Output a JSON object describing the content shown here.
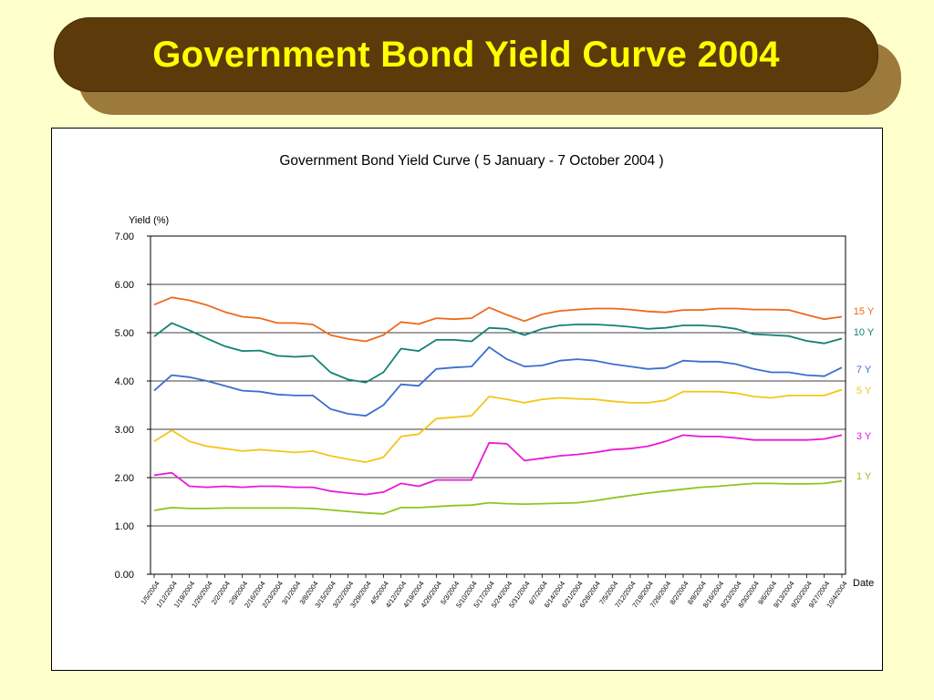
{
  "slide": {
    "title": "Government Bond Yield Curve 2004"
  },
  "chart_data": {
    "type": "line",
    "title": "Government Bond Yield Curve ( 5 January - 7 October 2004 )",
    "ylabel": "Yield (%)",
    "xlabel": "Date",
    "ylim": [
      0,
      7
    ],
    "yticks": [
      "0.00",
      "1.00",
      "2.00",
      "3.00",
      "4.00",
      "5.00",
      "6.00",
      "7.00"
    ],
    "grid": true,
    "legend": "right",
    "x": [
      "1/5/2004",
      "1/12/2004",
      "1/19/2004",
      "1/26/2004",
      "2/2/2004",
      "2/9/2004",
      "2/16/2004",
      "2/23/2004",
      "3/1/2004",
      "3/8/2004",
      "3/15/2004",
      "3/22/2004",
      "3/29/2004",
      "4/5/2004",
      "4/12/2004",
      "4/19/2004",
      "4/26/2004",
      "5/3/2004",
      "5/10/2004",
      "5/17/2004",
      "5/24/2004",
      "5/31/2004",
      "6/7/2004",
      "6/14/2004",
      "6/21/2004",
      "6/28/2004",
      "7/5/2004",
      "7/12/2004",
      "7/19/2004",
      "7/26/2004",
      "8/2/2004",
      "8/9/2004",
      "8/16/2004",
      "8/23/2004",
      "8/30/2004",
      "9/6/2004",
      "9/13/2004",
      "9/20/2004",
      "9/27/2004",
      "10/4/2004"
    ],
    "series": [
      {
        "name": "15 Y",
        "color": "#ee6a1c",
        "values": [
          5.58,
          5.73,
          5.67,
          5.57,
          5.43,
          5.33,
          5.3,
          5.2,
          5.2,
          5.17,
          4.95,
          4.87,
          4.82,
          4.95,
          5.22,
          5.18,
          5.3,
          5.28,
          5.3,
          5.52,
          5.37,
          5.24,
          5.38,
          5.45,
          5.48,
          5.5,
          5.5,
          5.48,
          5.44,
          5.42,
          5.47,
          5.47,
          5.5,
          5.5,
          5.48,
          5.48,
          5.47,
          5.37,
          5.28,
          5.33
        ]
      },
      {
        "name": "10 Y",
        "color": "#138072",
        "values": [
          4.92,
          5.2,
          5.05,
          4.88,
          4.72,
          4.62,
          4.63,
          4.52,
          4.5,
          4.52,
          4.18,
          4.03,
          3.97,
          4.18,
          4.67,
          4.62,
          4.85,
          4.85,
          4.82,
          5.1,
          5.08,
          4.95,
          5.08,
          5.15,
          5.17,
          5.17,
          5.15,
          5.12,
          5.08,
          5.1,
          5.15,
          5.15,
          5.13,
          5.08,
          4.97,
          4.95,
          4.93,
          4.83,
          4.78,
          4.88
        ]
      },
      {
        "name": "7 Y",
        "color": "#3a6fd0",
        "values": [
          3.8,
          4.12,
          4.08,
          4.0,
          3.9,
          3.8,
          3.78,
          3.72,
          3.7,
          3.7,
          3.42,
          3.32,
          3.28,
          3.5,
          3.93,
          3.9,
          4.25,
          4.28,
          4.3,
          4.7,
          4.45,
          4.3,
          4.32,
          4.42,
          4.45,
          4.42,
          4.35,
          4.3,
          4.25,
          4.27,
          4.42,
          4.4,
          4.4,
          4.35,
          4.25,
          4.18,
          4.18,
          4.12,
          4.1,
          4.28
        ]
      },
      {
        "name": "5 Y",
        "color": "#f5c518",
        "values": [
          2.75,
          2.98,
          2.75,
          2.65,
          2.6,
          2.55,
          2.58,
          2.55,
          2.52,
          2.55,
          2.45,
          2.38,
          2.32,
          2.42,
          2.85,
          2.9,
          3.22,
          3.25,
          3.28,
          3.68,
          3.62,
          3.55,
          3.62,
          3.65,
          3.63,
          3.62,
          3.58,
          3.55,
          3.55,
          3.6,
          3.78,
          3.78,
          3.78,
          3.75,
          3.68,
          3.65,
          3.7,
          3.7,
          3.7,
          3.82
        ]
      },
      {
        "name": "3 Y",
        "color": "#e81ad8",
        "values": [
          2.05,
          2.1,
          1.82,
          1.8,
          1.82,
          1.8,
          1.82,
          1.82,
          1.8,
          1.8,
          1.72,
          1.68,
          1.65,
          1.7,
          1.88,
          1.82,
          1.95,
          1.95,
          1.95,
          2.72,
          2.7,
          2.35,
          2.4,
          2.45,
          2.48,
          2.52,
          2.58,
          2.6,
          2.65,
          2.75,
          2.88,
          2.85,
          2.85,
          2.82,
          2.78,
          2.78,
          2.78,
          2.78,
          2.8,
          2.88
        ]
      },
      {
        "name": "1 Y",
        "color": "#92c31f",
        "values": [
          1.32,
          1.38,
          1.36,
          1.36,
          1.37,
          1.37,
          1.37,
          1.37,
          1.37,
          1.36,
          1.33,
          1.3,
          1.27,
          1.25,
          1.38,
          1.38,
          1.4,
          1.42,
          1.43,
          1.48,
          1.46,
          1.45,
          1.46,
          1.47,
          1.48,
          1.52,
          1.58,
          1.63,
          1.68,
          1.72,
          1.76,
          1.8,
          1.82,
          1.85,
          1.88,
          1.88,
          1.87,
          1.87,
          1.88,
          1.93
        ]
      }
    ]
  }
}
